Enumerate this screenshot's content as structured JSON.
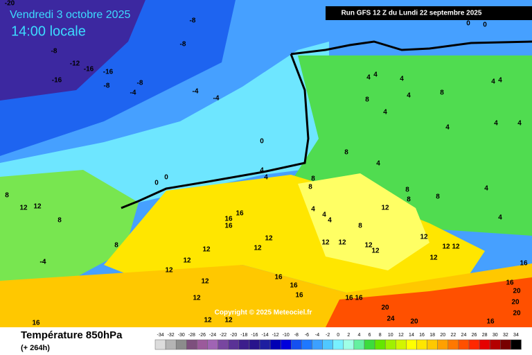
{
  "header": {
    "date": "Vendredi 3 octobre 2025",
    "time": "14:00 locale",
    "run": "Run GFS 12 Z du Lundi 22 septembre 2025"
  },
  "copyright": "Copyright © 2025 Meteociel.fr",
  "footer": {
    "title": "Température 850hPa",
    "lead": "(+ 264h)"
  },
  "legend": {
    "ticks": [
      -34,
      -32,
      -30,
      -28,
      -26,
      -24,
      -22,
      -20,
      -18,
      -16,
      -14,
      -12,
      -10,
      -8,
      -6,
      -4,
      -2,
      0,
      2,
      4,
      6,
      8,
      10,
      12,
      14,
      16,
      18,
      20,
      22,
      24,
      26,
      28,
      30,
      32,
      34
    ],
    "colors": [
      "#dcdcdc",
      "#b4b4b4",
      "#8c8c8c",
      "#7d4f7d",
      "#9b5a9b",
      "#a064b4",
      "#7846a0",
      "#5a3296",
      "#3c1e8c",
      "#28148c",
      "#1e1ea0",
      "#0000b4",
      "#0000dc",
      "#1450f0",
      "#1e78ff",
      "#3ca0ff",
      "#50c8ff",
      "#78f0ff",
      "#a0ffe6",
      "#64f0a0",
      "#3cdc3c",
      "#64e600",
      "#a0f000",
      "#d2f500",
      "#ffff00",
      "#ffe600",
      "#ffc800",
      "#ffa000",
      "#ff7800",
      "#ff5000",
      "#ff2800",
      "#e60000",
      "#b40000",
      "#780000",
      "#000000"
    ]
  },
  "map": {
    "labels": [
      -20,
      -8,
      -8,
      -8,
      -12,
      -16,
      -16,
      -16,
      -8,
      -8,
      -4,
      -4,
      -4,
      -4,
      0,
      0,
      0,
      4,
      4,
      8,
      8,
      8,
      12,
      12,
      8,
      16,
      16,
      16,
      12,
      12,
      8,
      -4,
      12,
      12,
      12,
      12,
      12,
      16,
      16,
      16,
      16,
      16,
      20,
      24,
      20,
      16,
      20,
      20,
      16,
      12,
      12,
      4,
      4,
      4,
      4,
      4,
      4,
      4,
      4,
      4,
      8,
      8,
      4,
      8,
      4,
      8,
      8,
      8,
      4,
      4,
      12,
      12,
      12,
      12,
      12,
      12,
      12,
      12,
      12,
      4,
      4,
      4,
      8,
      16,
      16,
      20,
      0,
      0
    ]
  }
}
